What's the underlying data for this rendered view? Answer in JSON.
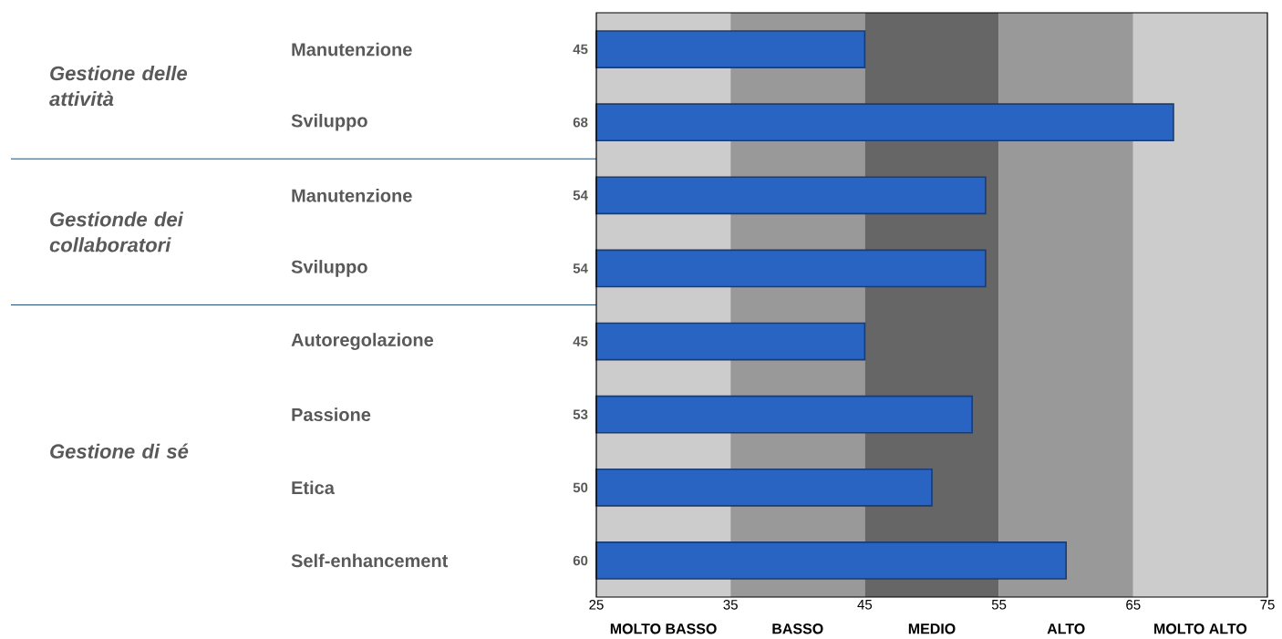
{
  "chart_data": {
    "type": "bar",
    "orientation": "horizontal",
    "categories": [
      "Manutenzione",
      "Sviluppo",
      "Manutenzione",
      "Sviluppo",
      "Autoregolazione",
      "Passione",
      "Etica",
      "Self-enhancement"
    ],
    "values": [
      45,
      68,
      54,
      54,
      45,
      53,
      50,
      60
    ],
    "color": "#2a64c2",
    "data_labels": true,
    "xlim": [
      25,
      75
    ],
    "xticks": [
      25,
      35,
      45,
      55,
      65,
      75
    ],
    "bands": [
      {
        "axis": "x",
        "from": 25,
        "to": 35,
        "label": "MOLTO BASSO",
        "color": "#cccccc"
      },
      {
        "axis": "x",
        "from": 35,
        "to": 45,
        "label": "BASSO",
        "color": "#999999"
      },
      {
        "axis": "x",
        "from": 45,
        "to": 55,
        "label": "MEDIO",
        "color": "#666666"
      },
      {
        "axis": "x",
        "from": 55,
        "to": 65,
        "label": "ALTO",
        "color": "#999999"
      },
      {
        "axis": "x",
        "from": 65,
        "to": 75,
        "label": "MOLTO ALTO",
        "color": "#cccccc"
      }
    ],
    "annotations": [
      "Gestione delle attività",
      "Gestionde dei collaboratori",
      "Gestione di sé"
    ]
  }
}
